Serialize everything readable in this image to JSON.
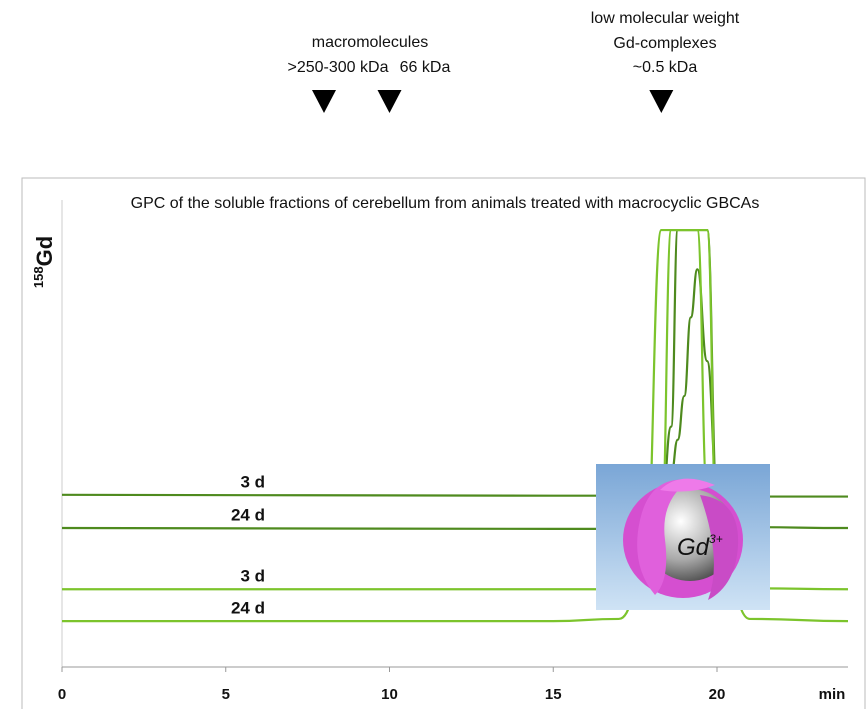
{
  "chart_data": {
    "type": "line",
    "title": "GPC of the soluble fractions of cerebellum from animals treated with macrocyclic GBCAs",
    "y_label": "Gd",
    "y_label_superscript": "158",
    "x_label": "min",
    "annotations": [
      "macromolecules",
      ">250-300 kDa",
      "66 kDa",
      "low molecular weight",
      "Gd-complexes",
      "~0.5 kDa"
    ],
    "markers": [
      8,
      10,
      18.3
    ],
    "inset_label": "Gd",
    "inset_superscript": "3+",
    "x": [
      0,
      15,
      17,
      17.8,
      18.3,
      18.6,
      18.8,
      19.0,
      19.2,
      19.4,
      19.7,
      20,
      21,
      24
    ],
    "xlim": [
      0,
      24
    ],
    "xticks": [
      0,
      5,
      10,
      15,
      20
    ],
    "ylim": [
      0,
      100
    ],
    "series": [
      {
        "name": "3 d",
        "color": "#4e8a1e",
        "values": [
          39.4,
          39.2,
          39.2,
          39.3,
          40,
          44,
          52,
          62,
          80,
          91,
          70,
          42,
          39,
          39
        ]
      },
      {
        "name": "24 d",
        "color": "#4e8a1e",
        "values": [
          31.8,
          31.6,
          31.6,
          32,
          35,
          55,
          100,
          100,
          100,
          100,
          100,
          40,
          32,
          31.8
        ]
      },
      {
        "name": "3 d",
        "color": "#7cc42c",
        "values": [
          17.8,
          17.8,
          17.8,
          18,
          30,
          100,
          100,
          100,
          100,
          100,
          40,
          20,
          18,
          17.8
        ]
      },
      {
        "name": "24 d",
        "color": "#7cc42c",
        "values": [
          10.5,
          10.5,
          11,
          20,
          100,
          100,
          100,
          100,
          100,
          100,
          100,
          30,
          11,
          10.5
        ]
      }
    ]
  }
}
